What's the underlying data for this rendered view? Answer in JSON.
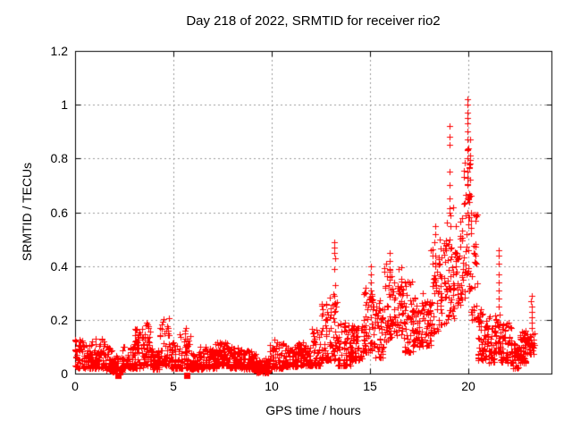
{
  "chart_data": {
    "type": "scatter",
    "title": "Day 218 of 2022, SRMTID for receiver rio2",
    "xlabel": "GPS time / hours",
    "ylabel": "SRMTID / TECUs",
    "xlim": [
      0,
      24.23
    ],
    "ylim": [
      0,
      1.2
    ],
    "xticks": [
      0,
      5,
      10,
      15,
      20
    ],
    "xtick_labels": [
      "0",
      "5",
      "10",
      "15",
      "20"
    ],
    "yticks": [
      0,
      0.2,
      0.4,
      0.6,
      0.8,
      1.0,
      1.2
    ],
    "ytick_labels": [
      "0",
      "0.2",
      "0.4",
      "0.6",
      "0.8",
      "1",
      "1.2"
    ],
    "grid": true,
    "legend": "none",
    "marker": "plus",
    "marker_size": 7,
    "marker_color": "#ff0000",
    "grid_color": "#9a9a9a",
    "border_color": "#000000",
    "background_color": "#ffffff",
    "series": [
      {
        "name": "SRMTID",
        "comment_density_bins": "each bin = [hour_start, hour_end, y_min, y_max, point_count, skew_exponent] read from the plot envelope",
        "density_bins": [
          [
            0.0,
            0.5,
            0.02,
            0.13,
            55,
            1.6
          ],
          [
            0.5,
            1.0,
            0.02,
            0.12,
            55,
            1.8
          ],
          [
            1.0,
            1.5,
            0.02,
            0.14,
            55,
            1.8
          ],
          [
            1.5,
            1.9,
            0.01,
            0.1,
            45,
            1.8
          ],
          [
            1.9,
            2.4,
            0.005,
            0.07,
            50,
            1.5
          ],
          [
            2.4,
            3.0,
            0.02,
            0.1,
            60,
            1.8
          ],
          [
            3.0,
            3.5,
            0.02,
            0.17,
            55,
            2.0
          ],
          [
            3.5,
            3.9,
            0.03,
            0.19,
            45,
            2.0
          ],
          [
            3.9,
            4.3,
            0.015,
            0.09,
            45,
            1.5
          ],
          [
            4.3,
            4.8,
            0.03,
            0.21,
            50,
            2.2
          ],
          [
            4.8,
            5.3,
            0.02,
            0.12,
            50,
            1.8
          ],
          [
            5.3,
            5.9,
            0.02,
            0.15,
            60,
            2.2
          ],
          [
            5.9,
            6.5,
            0.015,
            0.1,
            60,
            1.8
          ],
          [
            6.5,
            7.2,
            0.02,
            0.11,
            70,
            1.8
          ],
          [
            7.2,
            7.8,
            0.03,
            0.13,
            60,
            1.8
          ],
          [
            7.8,
            8.5,
            0.02,
            0.1,
            70,
            1.8
          ],
          [
            8.5,
            9.2,
            0.015,
            0.09,
            70,
            1.8
          ],
          [
            9.2,
            9.9,
            0.003,
            0.06,
            75,
            1.5
          ],
          [
            9.9,
            10.6,
            0.02,
            0.13,
            70,
            2.0
          ],
          [
            10.6,
            11.3,
            0.025,
            0.11,
            70,
            1.8
          ],
          [
            11.3,
            12.0,
            0.03,
            0.12,
            70,
            1.8
          ],
          [
            12.0,
            12.5,
            0.03,
            0.17,
            50,
            2.2
          ],
          [
            12.5,
            12.95,
            0.05,
            0.26,
            45,
            2.0
          ],
          [
            12.95,
            13.35,
            0.05,
            0.3,
            40,
            1.8
          ],
          [
            13.35,
            14.0,
            0.03,
            0.19,
            65,
            2.0
          ],
          [
            14.0,
            14.6,
            0.05,
            0.18,
            60,
            1.6
          ],
          [
            14.6,
            15.25,
            0.08,
            0.32,
            65,
            1.8
          ],
          [
            15.25,
            15.7,
            0.06,
            0.28,
            45,
            1.6
          ],
          [
            15.7,
            16.2,
            0.12,
            0.42,
            50,
            1.5
          ],
          [
            16.2,
            16.7,
            0.14,
            0.4,
            50,
            1.4
          ],
          [
            16.7,
            17.2,
            0.08,
            0.35,
            50,
            1.6
          ],
          [
            17.2,
            17.7,
            0.1,
            0.3,
            50,
            1.4
          ],
          [
            17.7,
            18.1,
            0.1,
            0.28,
            40,
            1.4
          ],
          [
            18.1,
            18.45,
            0.15,
            0.47,
            35,
            1.6
          ],
          [
            18.45,
            18.9,
            0.18,
            0.5,
            45,
            1.3
          ],
          [
            18.9,
            19.3,
            0.2,
            0.62,
            40,
            1.4
          ],
          [
            19.3,
            19.75,
            0.25,
            0.62,
            45,
            1.2
          ],
          [
            19.75,
            20.15,
            0.28,
            0.85,
            45,
            1.3
          ],
          [
            20.15,
            20.45,
            0.2,
            0.6,
            30,
            1.5
          ],
          [
            20.45,
            21.0,
            0.05,
            0.24,
            60,
            1.6
          ],
          [
            21.0,
            21.4,
            0.04,
            0.22,
            45,
            1.6
          ],
          [
            21.4,
            21.65,
            0.08,
            0.22,
            25,
            1.5
          ],
          [
            21.65,
            22.25,
            0.04,
            0.19,
            60,
            1.7
          ],
          [
            22.25,
            22.6,
            0.02,
            0.12,
            40,
            1.6
          ],
          [
            22.6,
            23.0,
            0.04,
            0.16,
            45,
            1.6
          ],
          [
            23.0,
            23.35,
            0.07,
            0.15,
            35,
            1.5
          ]
        ],
        "spike_columns": [
          {
            "x": 5.6,
            "y": [
              0.13,
              0.15,
              0.16,
              0.17
            ]
          },
          {
            "x": 12.8,
            "y": [
              0.14,
              0.17,
              0.2,
              0.23,
              0.26
            ]
          },
          {
            "x": 13.2,
            "y": [
              0.23,
              0.26,
              0.29,
              0.33,
              0.39,
              0.43,
              0.45,
              0.47,
              0.49
            ]
          },
          {
            "x": 15.05,
            "y": [
              0.25,
              0.28,
              0.31,
              0.34,
              0.37,
              0.4
            ]
          },
          {
            "x": 16.0,
            "y": [
              0.33,
              0.36,
              0.39,
              0.42,
              0.45
            ]
          },
          {
            "x": 18.3,
            "y": [
              0.3,
              0.35,
              0.4,
              0.44,
              0.49,
              0.52,
              0.55
            ]
          },
          {
            "x": 19.05,
            "y": [
              0.5,
              0.55,
              0.6,
              0.65,
              0.7,
              0.75,
              0.85,
              0.88,
              0.92
            ]
          },
          {
            "x": 19.95,
            "y": [
              0.6,
              0.65,
              0.7,
              0.75,
              0.8,
              0.83,
              0.87,
              0.9,
              0.93,
              0.95,
              0.97,
              1.0,
              1.02
            ]
          },
          {
            "x": 20.1,
            "y": [
              0.6,
              0.66,
              0.72,
              0.78,
              0.81,
              0.87
            ]
          },
          {
            "x": 21.55,
            "y": [
              0.22,
              0.25,
              0.28,
              0.31,
              0.34,
              0.37,
              0.41,
              0.44,
              0.46
            ]
          },
          {
            "x": 23.2,
            "y": [
              0.17,
              0.19,
              0.21,
              0.23,
              0.25,
              0.27,
              0.29
            ]
          }
        ],
        "zero_points": [
          2.18,
          5.68
        ],
        "y_max_point": {
          "x": 19.95,
          "y": 1.02
        },
        "x_data_end": 23.4
      }
    ]
  }
}
